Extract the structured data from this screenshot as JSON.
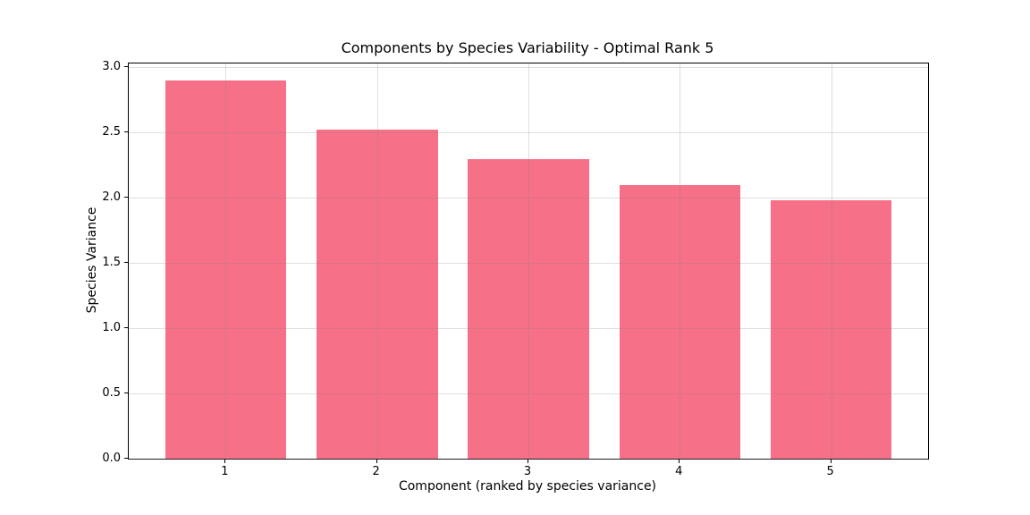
{
  "chart_data": {
    "type": "bar",
    "title": "Components by Species Variability - Optimal Rank 5",
    "xlabel": "Component (ranked by species variance)",
    "ylabel": "Species Variance",
    "categories": [
      "1",
      "2",
      "3",
      "4",
      "5"
    ],
    "values": [
      2.9,
      2.52,
      2.3,
      2.1,
      1.98
    ],
    "yticks": [
      0.0,
      0.5,
      1.0,
      1.5,
      2.0,
      2.5,
      3.0
    ],
    "ytick_labels": [
      "0.0",
      "0.5",
      "1.0",
      "1.5",
      "2.0",
      "2.5",
      "3.0"
    ],
    "ylim": [
      0,
      3.03
    ],
    "xlim": [
      0.36,
      5.64
    ],
    "bar_width": 0.8,
    "bar_color": "#F67088",
    "grid": true,
    "grid_color": "rgba(128,128,128,0.25)",
    "grid_above_bars": true,
    "legend": "none",
    "background": "#FFFFFF"
  }
}
